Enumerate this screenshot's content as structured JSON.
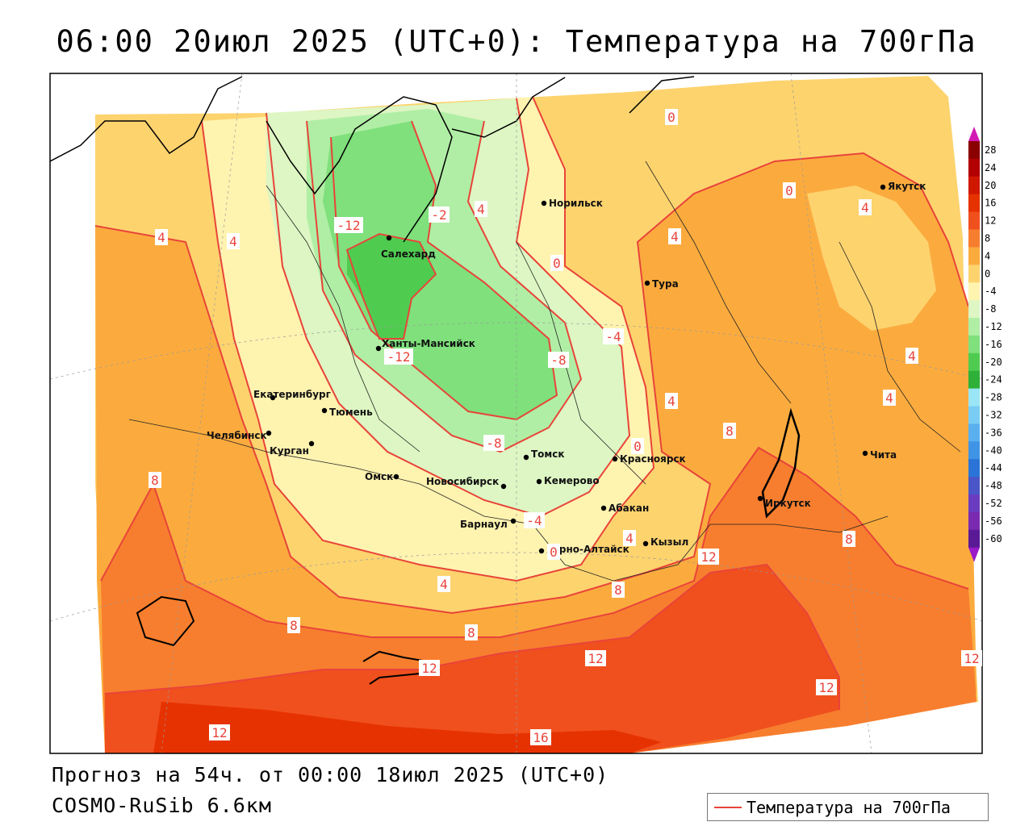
{
  "title": "06:00 20июл 2025 (UTC+0): Температура на 700гПа",
  "footer": {
    "forecast": "Прогноз на 54ч. от 00:00 18июл 2025 (UTC+0)",
    "model": "COSMO-RuSib 6.6км"
  },
  "legend": {
    "label": "Температура на 700гПа",
    "line_color": "#e8443a"
  },
  "colorbar": {
    "ticks": [
      "28",
      "24",
      "20",
      "16",
      "12",
      "8",
      "4",
      "0",
      "-4",
      "-8",
      "-12",
      "-16",
      "-20",
      "-24",
      "-28",
      "-32",
      "-36",
      "-40",
      "-44",
      "-48",
      "-52",
      "-56",
      "-60"
    ],
    "colors": [
      "#8b0000",
      "#b30000",
      "#d01800",
      "#e63200",
      "#f0501e",
      "#f77e2e",
      "#fbab3e",
      "#fdd36e",
      "#fff3b0",
      "#ddf6c3",
      "#b0eea5",
      "#7fe07c",
      "#4fcc50",
      "#2eb039",
      "#9ae6f6",
      "#79cdf4",
      "#5ab0ef",
      "#3f94e6",
      "#2a74d8",
      "#4a56c8",
      "#6a3cc0",
      "#7a2ab0",
      "#5a1a96"
    ],
    "top_arrow_color": "#d21ab4",
    "bottom_arrow_color": "#9a1ac8"
  },
  "cities": [
    {
      "name": "Салехард"
    },
    {
      "name": "Норильск"
    },
    {
      "name": "Якутск"
    },
    {
      "name": "Тура"
    },
    {
      "name": "Ханты-Мансийск"
    },
    {
      "name": "Екатеринбург"
    },
    {
      "name": "Тюмень"
    },
    {
      "name": "Челябинск"
    },
    {
      "name": "Курган"
    },
    {
      "name": "Омск"
    },
    {
      "name": "Новосибирск"
    },
    {
      "name": "Томск"
    },
    {
      "name": "Кемерово"
    },
    {
      "name": "Красноярск"
    },
    {
      "name": "Барнаул"
    },
    {
      "name": "Абакан"
    },
    {
      "name": "Горно-Алтайск"
    },
    {
      "name": "Кызыл"
    },
    {
      "name": "Иркутск"
    },
    {
      "name": "Чита"
    }
  ],
  "contour_labels": [
    {
      "text": "0"
    },
    {
      "text": "4"
    },
    {
      "text": "4"
    },
    {
      "text": "-12"
    },
    {
      "text": "-2"
    },
    {
      "text": "4"
    },
    {
      "text": "0"
    },
    {
      "text": "4"
    },
    {
      "text": "4"
    },
    {
      "text": "0"
    },
    {
      "text": "-12"
    },
    {
      "text": "-8"
    },
    {
      "text": "-4"
    },
    {
      "text": "4"
    },
    {
      "text": "4"
    },
    {
      "text": "-8"
    },
    {
      "text": "0"
    },
    {
      "text": "8"
    },
    {
      "text": "4"
    },
    {
      "text": "-4"
    },
    {
      "text": "4"
    },
    {
      "text": "0"
    },
    {
      "text": "12"
    },
    {
      "text": "8"
    },
    {
      "text": "4"
    },
    {
      "text": "8"
    },
    {
      "text": "8"
    },
    {
      "text": "8"
    },
    {
      "text": "12"
    },
    {
      "text": "12"
    },
    {
      "text": "12"
    },
    {
      "text": "12"
    },
    {
      "text": "16"
    },
    {
      "text": "12"
    },
    {
      "text": "8"
    }
  ]
}
